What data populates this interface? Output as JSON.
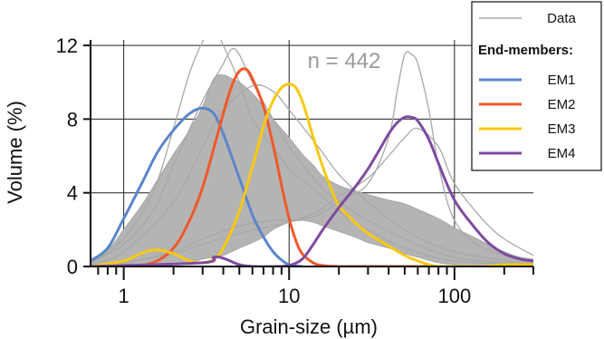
{
  "chart_data": {
    "type": "line",
    "xlabel": "Grain-size (µm)",
    "ylabel": "Volume (%)",
    "x_scale": "log",
    "xlim": [
      0.63,
      300
    ],
    "ylim": [
      0,
      12.3
    ],
    "x_ticks": [
      1,
      10,
      100
    ],
    "x_tick_labels": [
      "1",
      "10",
      "100"
    ],
    "y_ticks": [
      0,
      4,
      8,
      12
    ],
    "y_tick_labels": [
      "0",
      "4",
      "8",
      "12"
    ],
    "grid": true,
    "annotation": "n = 442",
    "legend": {
      "placement": "top-right",
      "data_label": "Data",
      "section_title": "End-members:"
    },
    "data_color": "#a8a8a8",
    "data_envelope": {
      "x": [
        0.63,
        0.8,
        1.0,
        1.3,
        1.6,
        2.0,
        2.5,
        3.0,
        3.5,
        4.0,
        4.5,
        5.0,
        6.0,
        7.0,
        8.0,
        10,
        12,
        14,
        16,
        20,
        25,
        30,
        40,
        50,
        60,
        80,
        100,
        130,
        160,
        200,
        250,
        300
      ],
      "upper": [
        0.4,
        0.9,
        2.0,
        3.4,
        4.7,
        6.1,
        7.4,
        8.7,
        10.2,
        10.4,
        10.2,
        10.0,
        9.4,
        8.7,
        8.0,
        7.0,
        6.1,
        5.5,
        4.9,
        4.4,
        4.1,
        3.9,
        3.6,
        3.4,
        3.1,
        2.6,
        2.1,
        1.6,
        1.2,
        0.8,
        0.5,
        0.4
      ],
      "lower": [
        0.0,
        0.0,
        0.0,
        0.0,
        0.0,
        0.1,
        0.2,
        0.4,
        0.5,
        0.6,
        0.8,
        1.0,
        1.3,
        1.6,
        2.0,
        2.4,
        2.5,
        2.4,
        2.2,
        1.9,
        1.6,
        1.3,
        1.0,
        0.7,
        0.5,
        0.2,
        0.1,
        0.0,
        0.0,
        0.0,
        0.0,
        0.0
      ]
    },
    "data_curves": [
      {
        "x": [
          0.63,
          1.0,
          1.5,
          2.0,
          2.5,
          3.0,
          3.5,
          4.0,
          5.0,
          6.0,
          8.0,
          10,
          15,
          20,
          30,
          50,
          100,
          300
        ],
        "y": [
          0.2,
          1.5,
          4.0,
          7.5,
          10.5,
          12.2,
          13.0,
          12.0,
          10.0,
          8.0,
          6.5,
          5.3,
          4.0,
          3.0,
          2.0,
          1.0,
          0.3,
          0.1
        ]
      },
      {
        "x": [
          0.63,
          1.0,
          1.5,
          2.0,
          3.0,
          4.0,
          4.5,
          5.0,
          6.0,
          8.0,
          10,
          15,
          20,
          30,
          50,
          100,
          300
        ],
        "y": [
          0.2,
          1.2,
          3.0,
          5.5,
          9.0,
          11.0,
          11.8,
          11.5,
          10.0,
          8.0,
          6.5,
          4.5,
          3.5,
          2.5,
          1.5,
          0.5,
          0.1
        ]
      },
      {
        "x": [
          0.63,
          1.0,
          2.0,
          3.0,
          5.0,
          8.0,
          10,
          15,
          20,
          30,
          40,
          45,
          50,
          55,
          60,
          70,
          80,
          100,
          150,
          300
        ],
        "y": [
          0.0,
          0.2,
          0.8,
          1.5,
          2.2,
          2.5,
          2.5,
          2.8,
          3.5,
          4.5,
          7.0,
          9.5,
          11.5,
          11.5,
          11.0,
          8.5,
          5.5,
          2.5,
          1.0,
          0.2
        ]
      },
      {
        "x": [
          0.63,
          1.0,
          2.0,
          3.0,
          5.0,
          8.0,
          10,
          15,
          20,
          30,
          40,
          50,
          60,
          80,
          100,
          150,
          200,
          300
        ],
        "y": [
          0.0,
          0.2,
          0.7,
          1.2,
          1.8,
          2.2,
          2.4,
          3.0,
          3.8,
          4.8,
          6.0,
          7.0,
          7.5,
          6.5,
          4.5,
          2.5,
          1.5,
          0.6
        ]
      },
      {
        "x": [
          0.63,
          1.0,
          2.0,
          3.0,
          4.0,
          6.0,
          8.0,
          10,
          15,
          20,
          30,
          50,
          100,
          300
        ],
        "y": [
          0.1,
          0.8,
          3.5,
          6.5,
          8.5,
          9.8,
          9.5,
          8.5,
          6.5,
          5.0,
          3.5,
          2.0,
          0.8,
          0.1
        ]
      }
    ],
    "series": [
      {
        "name": "EM1",
        "color": "#5b86c9",
        "x": [
          0.63,
          0.8,
          1.0,
          1.3,
          1.6,
          2.0,
          2.5,
          3.0,
          3.5,
          4.0,
          5.0,
          6.0,
          7.0,
          8.0,
          9.0,
          10,
          12
        ],
        "y": [
          0.3,
          1.0,
          2.6,
          4.6,
          6.2,
          7.4,
          8.3,
          8.6,
          8.3,
          7.2,
          4.8,
          2.8,
          1.6,
          0.8,
          0.35,
          0.1,
          0.0
        ]
      },
      {
        "name": "EM2",
        "color": "#f0582a",
        "x": [
          0.63,
          1.0,
          1.5,
          2.0,
          2.5,
          3.0,
          3.5,
          4.0,
          4.5,
          5.0,
          5.5,
          6.0,
          7.0,
          8.0,
          9.0,
          10,
          11,
          12,
          14,
          16,
          20,
          30,
          100,
          300
        ],
        "y": [
          0.0,
          0.0,
          0.2,
          1.0,
          2.5,
          4.3,
          6.4,
          8.3,
          9.8,
          10.6,
          10.7,
          10.2,
          8.7,
          6.6,
          4.4,
          2.6,
          1.4,
          0.7,
          0.2,
          0.05,
          0.0,
          0.0,
          0.0,
          0.0
        ]
      },
      {
        "name": "EM3",
        "color": "#f9c80e",
        "x": [
          0.63,
          1.0,
          1.3,
          1.6,
          2.0,
          2.5,
          3.0,
          3.5,
          4.0,
          5.0,
          6.0,
          7.0,
          8.0,
          9.0,
          10,
          11,
          12,
          13,
          14,
          16,
          18,
          20,
          25,
          30,
          40,
          50,
          60,
          70,
          80,
          100,
          150,
          200,
          300
        ],
        "y": [
          0.0,
          0.3,
          0.75,
          0.9,
          0.7,
          0.3,
          0.2,
          0.4,
          1.0,
          3.0,
          5.4,
          7.6,
          9.0,
          9.7,
          9.9,
          9.7,
          9.0,
          8.0,
          7.0,
          5.4,
          4.2,
          3.3,
          2.4,
          1.8,
          1.1,
          0.6,
          0.3,
          0.1,
          0.0,
          0.0,
          0.0,
          0.1,
          0.1
        ]
      },
      {
        "name": "EM4",
        "color": "#7e4ba0",
        "x": [
          0.63,
          3.0,
          3.5,
          4.0,
          5.0,
          6.0,
          8.0,
          10,
          12,
          14,
          16,
          20,
          25,
          30,
          35,
          40,
          45,
          50,
          55,
          60,
          70,
          80,
          100,
          130,
          160,
          200,
          250,
          300
        ],
        "y": [
          0.0,
          0.2,
          0.5,
          0.45,
          0.1,
          0.0,
          0.0,
          0.05,
          0.4,
          1.2,
          2.0,
          3.2,
          4.3,
          5.3,
          6.3,
          7.2,
          7.8,
          8.1,
          8.1,
          7.9,
          6.9,
          5.6,
          3.6,
          2.2,
          1.3,
          0.7,
          0.4,
          0.3
        ]
      }
    ]
  }
}
